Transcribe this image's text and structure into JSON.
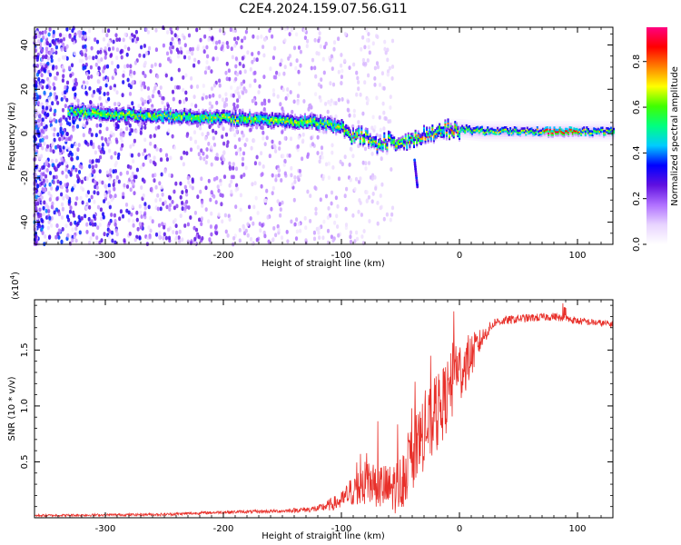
{
  "page_title": "C2E4.2024.159.07.56.G11",
  "chart_data": [
    {
      "type": "heatmap",
      "title": "C2E4.2024.159.07.56.G11",
      "xlabel": "Height of straight line (km)",
      "ylabel": "Frequency (Hz)",
      "xlim": [
        -360,
        130
      ],
      "ylim": [
        -50,
        48
      ],
      "x_ticks": [
        -300,
        -200,
        -100,
        0,
        100
      ],
      "x_tick_labels": [
        "-300",
        "-200",
        "-100",
        "0",
        "100"
      ],
      "y_ticks": [
        -40,
        -20,
        0,
        20,
        40
      ],
      "y_tick_labels": [
        "-40",
        "-20",
        "0",
        "20",
        "40"
      ],
      "ridge": {
        "x": [
          -330,
          -300,
          -250,
          -200,
          -150,
          -120,
          -100,
          -90,
          -80,
          -70,
          -60,
          -50,
          -40,
          -30,
          -20,
          -10,
          0,
          20,
          50,
          100,
          130
        ],
        "y": [
          10,
          9,
          8,
          7,
          6,
          5,
          3,
          -2,
          0,
          -5,
          -3,
          -4,
          -2,
          0,
          1,
          2,
          2,
          1,
          1,
          1,
          1
        ]
      },
      "colorbar": {
        "label": "Normalized spectral amplitude",
        "range": [
          0,
          0.95
        ],
        "ticks": [
          0.0,
          0.2,
          0.4,
          0.6,
          0.8
        ],
        "tick_labels": [
          "0.0",
          "0.2",
          "0.4",
          "0.6",
          "0.8"
        ],
        "colors": [
          "#ffffff",
          "#e8d4ff",
          "#b070ff",
          "#6010e0",
          "#0000ff",
          "#00ccff",
          "#00ff80",
          "#40ff00",
          "#ffff00",
          "#ff8000",
          "#ff0000",
          "#ff0080"
        ]
      }
    },
    {
      "type": "line",
      "xlabel": "Height of straight line (km)",
      "ylabel": "SNR (10 * v/v)",
      "y_multiplier": "(x10",
      "y_multiplier_exp": "4",
      "y_multiplier_close": ")",
      "xlim": [
        -360,
        130
      ],
      "ylim": [
        0,
        1.95
      ],
      "x_ticks": [
        -300,
        -200,
        -100,
        0,
        100
      ],
      "x_tick_labels": [
        "-300",
        "-200",
        "-100",
        "0",
        "100"
      ],
      "y_ticks": [
        0.5,
        1.0,
        1.5
      ],
      "y_tick_labels": [
        "0.5",
        "1.0",
        "1.5"
      ],
      "line_color": "#e8302a",
      "envelope": {
        "x": [
          -360,
          -250,
          -200,
          -150,
          -120,
          -100,
          -90,
          -80,
          -70,
          -60,
          -50,
          -40,
          -30,
          -20,
          -10,
          0,
          10,
          20,
          30,
          50,
          80,
          100,
          130
        ],
        "y": [
          0.02,
          0.03,
          0.05,
          0.06,
          0.08,
          0.15,
          0.25,
          0.3,
          0.3,
          0.25,
          0.3,
          0.55,
          0.75,
          0.9,
          1.1,
          1.3,
          1.45,
          1.62,
          1.75,
          1.78,
          1.8,
          1.76,
          1.73
        ]
      },
      "noise": {
        "x": [
          -360,
          -150,
          -120,
          -100,
          -90,
          -80,
          -60,
          -40,
          -20,
          0,
          10,
          20,
          30,
          130
        ],
        "y": [
          0.01,
          0.015,
          0.03,
          0.08,
          0.15,
          0.2,
          0.22,
          0.3,
          0.35,
          0.3,
          0.2,
          0.08,
          0.04,
          0.03
        ]
      }
    }
  ]
}
